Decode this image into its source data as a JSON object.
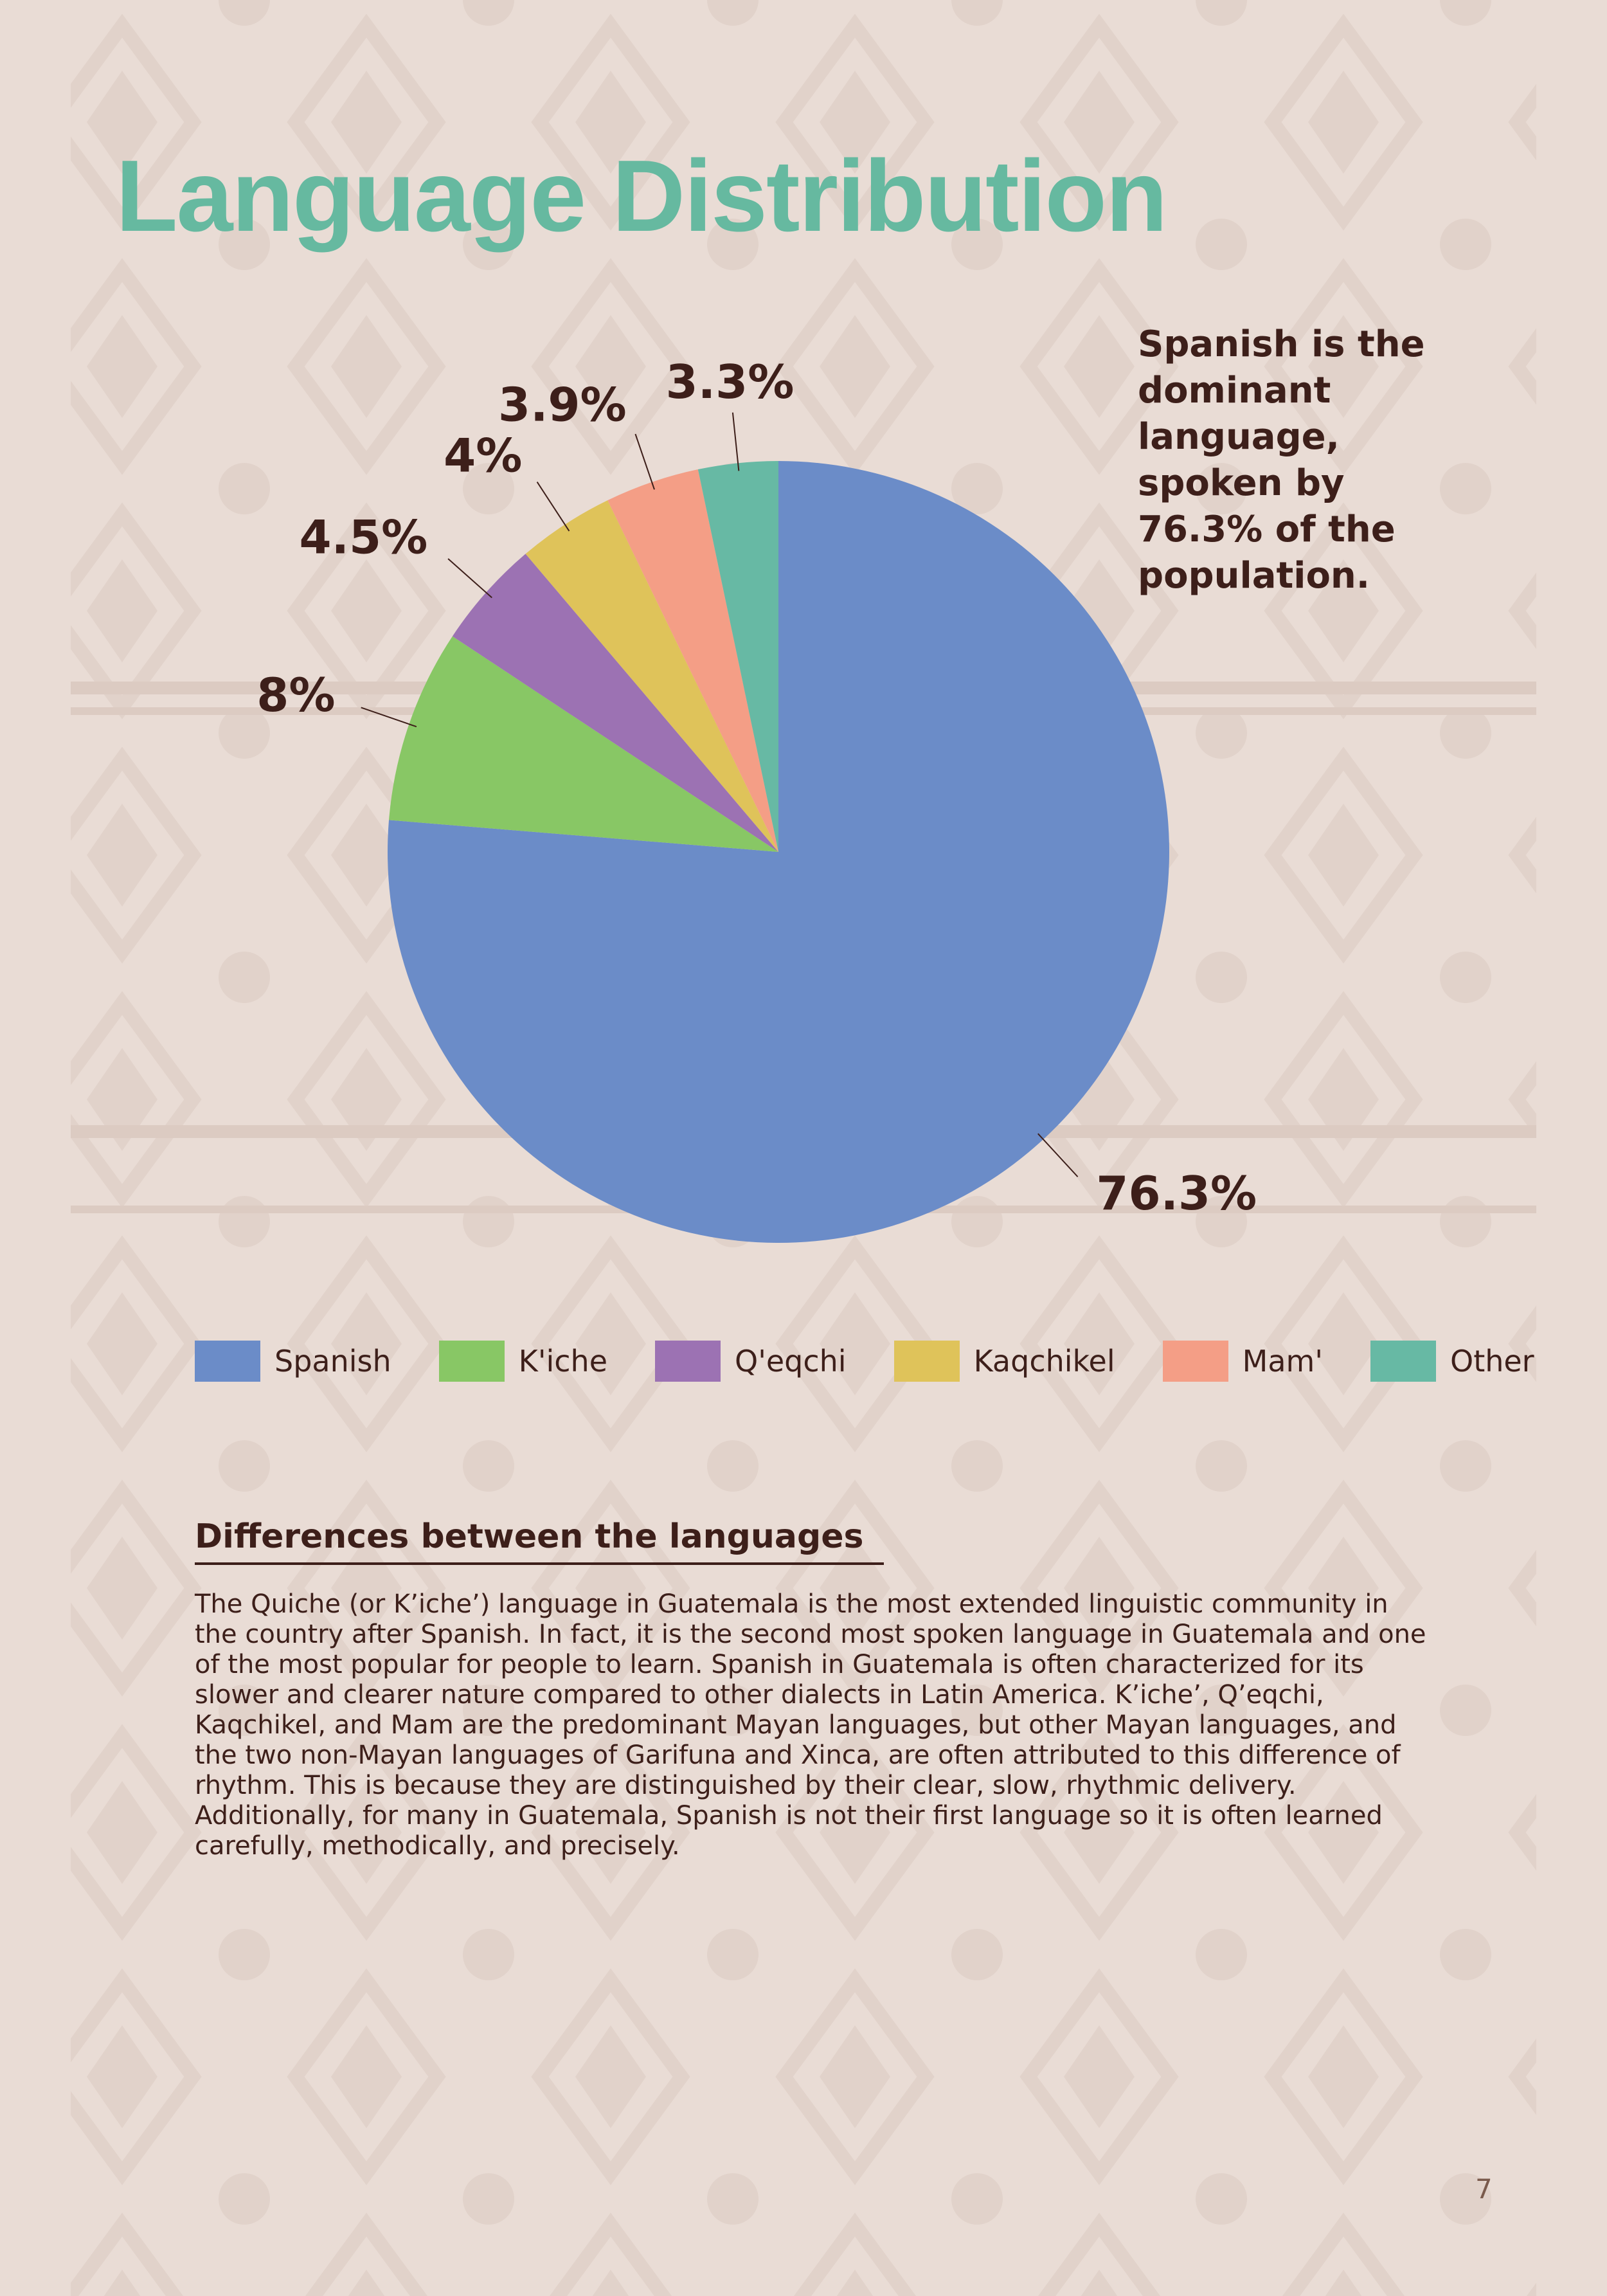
{
  "chart_data": {
    "type": "pie",
    "title": "Language Distribution",
    "annotation": "Spanish is the dominant language, spoken by 76.3% of the population.",
    "categories": [
      "Spanish",
      "K'iche",
      "Q'eqchi",
      "Kaqchikel",
      "Mam'",
      "Other"
    ],
    "values": [
      76.3,
      8,
      4.5,
      4,
      3.9,
      3.3
    ],
    "value_labels": [
      "76.3%",
      "8%",
      "4.5%",
      "4%",
      "3.9%",
      "3.3%"
    ],
    "colors": [
      "#6b8cc8",
      "#88c765",
      "#9c72b3",
      "#dfc35a",
      "#f49e86",
      "#67b9a4"
    ],
    "legend": "bottom"
  },
  "section": {
    "heading": "Differences between the languages",
    "body": "The Quiche (or K’iche’) language in Guatemala is the most extended linguistic community in the country after Spanish. In fact, it is the second most spoken language in Guatemala and one of the most popular for people to learn. Spanish in Guatemala is often characterized for its slower and clearer nature compared to other dialects in Latin America. K’iche’, Q’eqchi, Kaqchikel, and Mam are the predominant Mayan languages, but other Mayan languages, and the two non-Mayan languages of Garifuna and Xinca, are often attributed to this difference of rhythm. This is because they are distinguished by their clear, slow, rhythmic delivery. Additionally, for many in Guatemala, Spanish is not their first language so it is often learned carefully, methodically, and precisely."
  },
  "page_number": "7"
}
